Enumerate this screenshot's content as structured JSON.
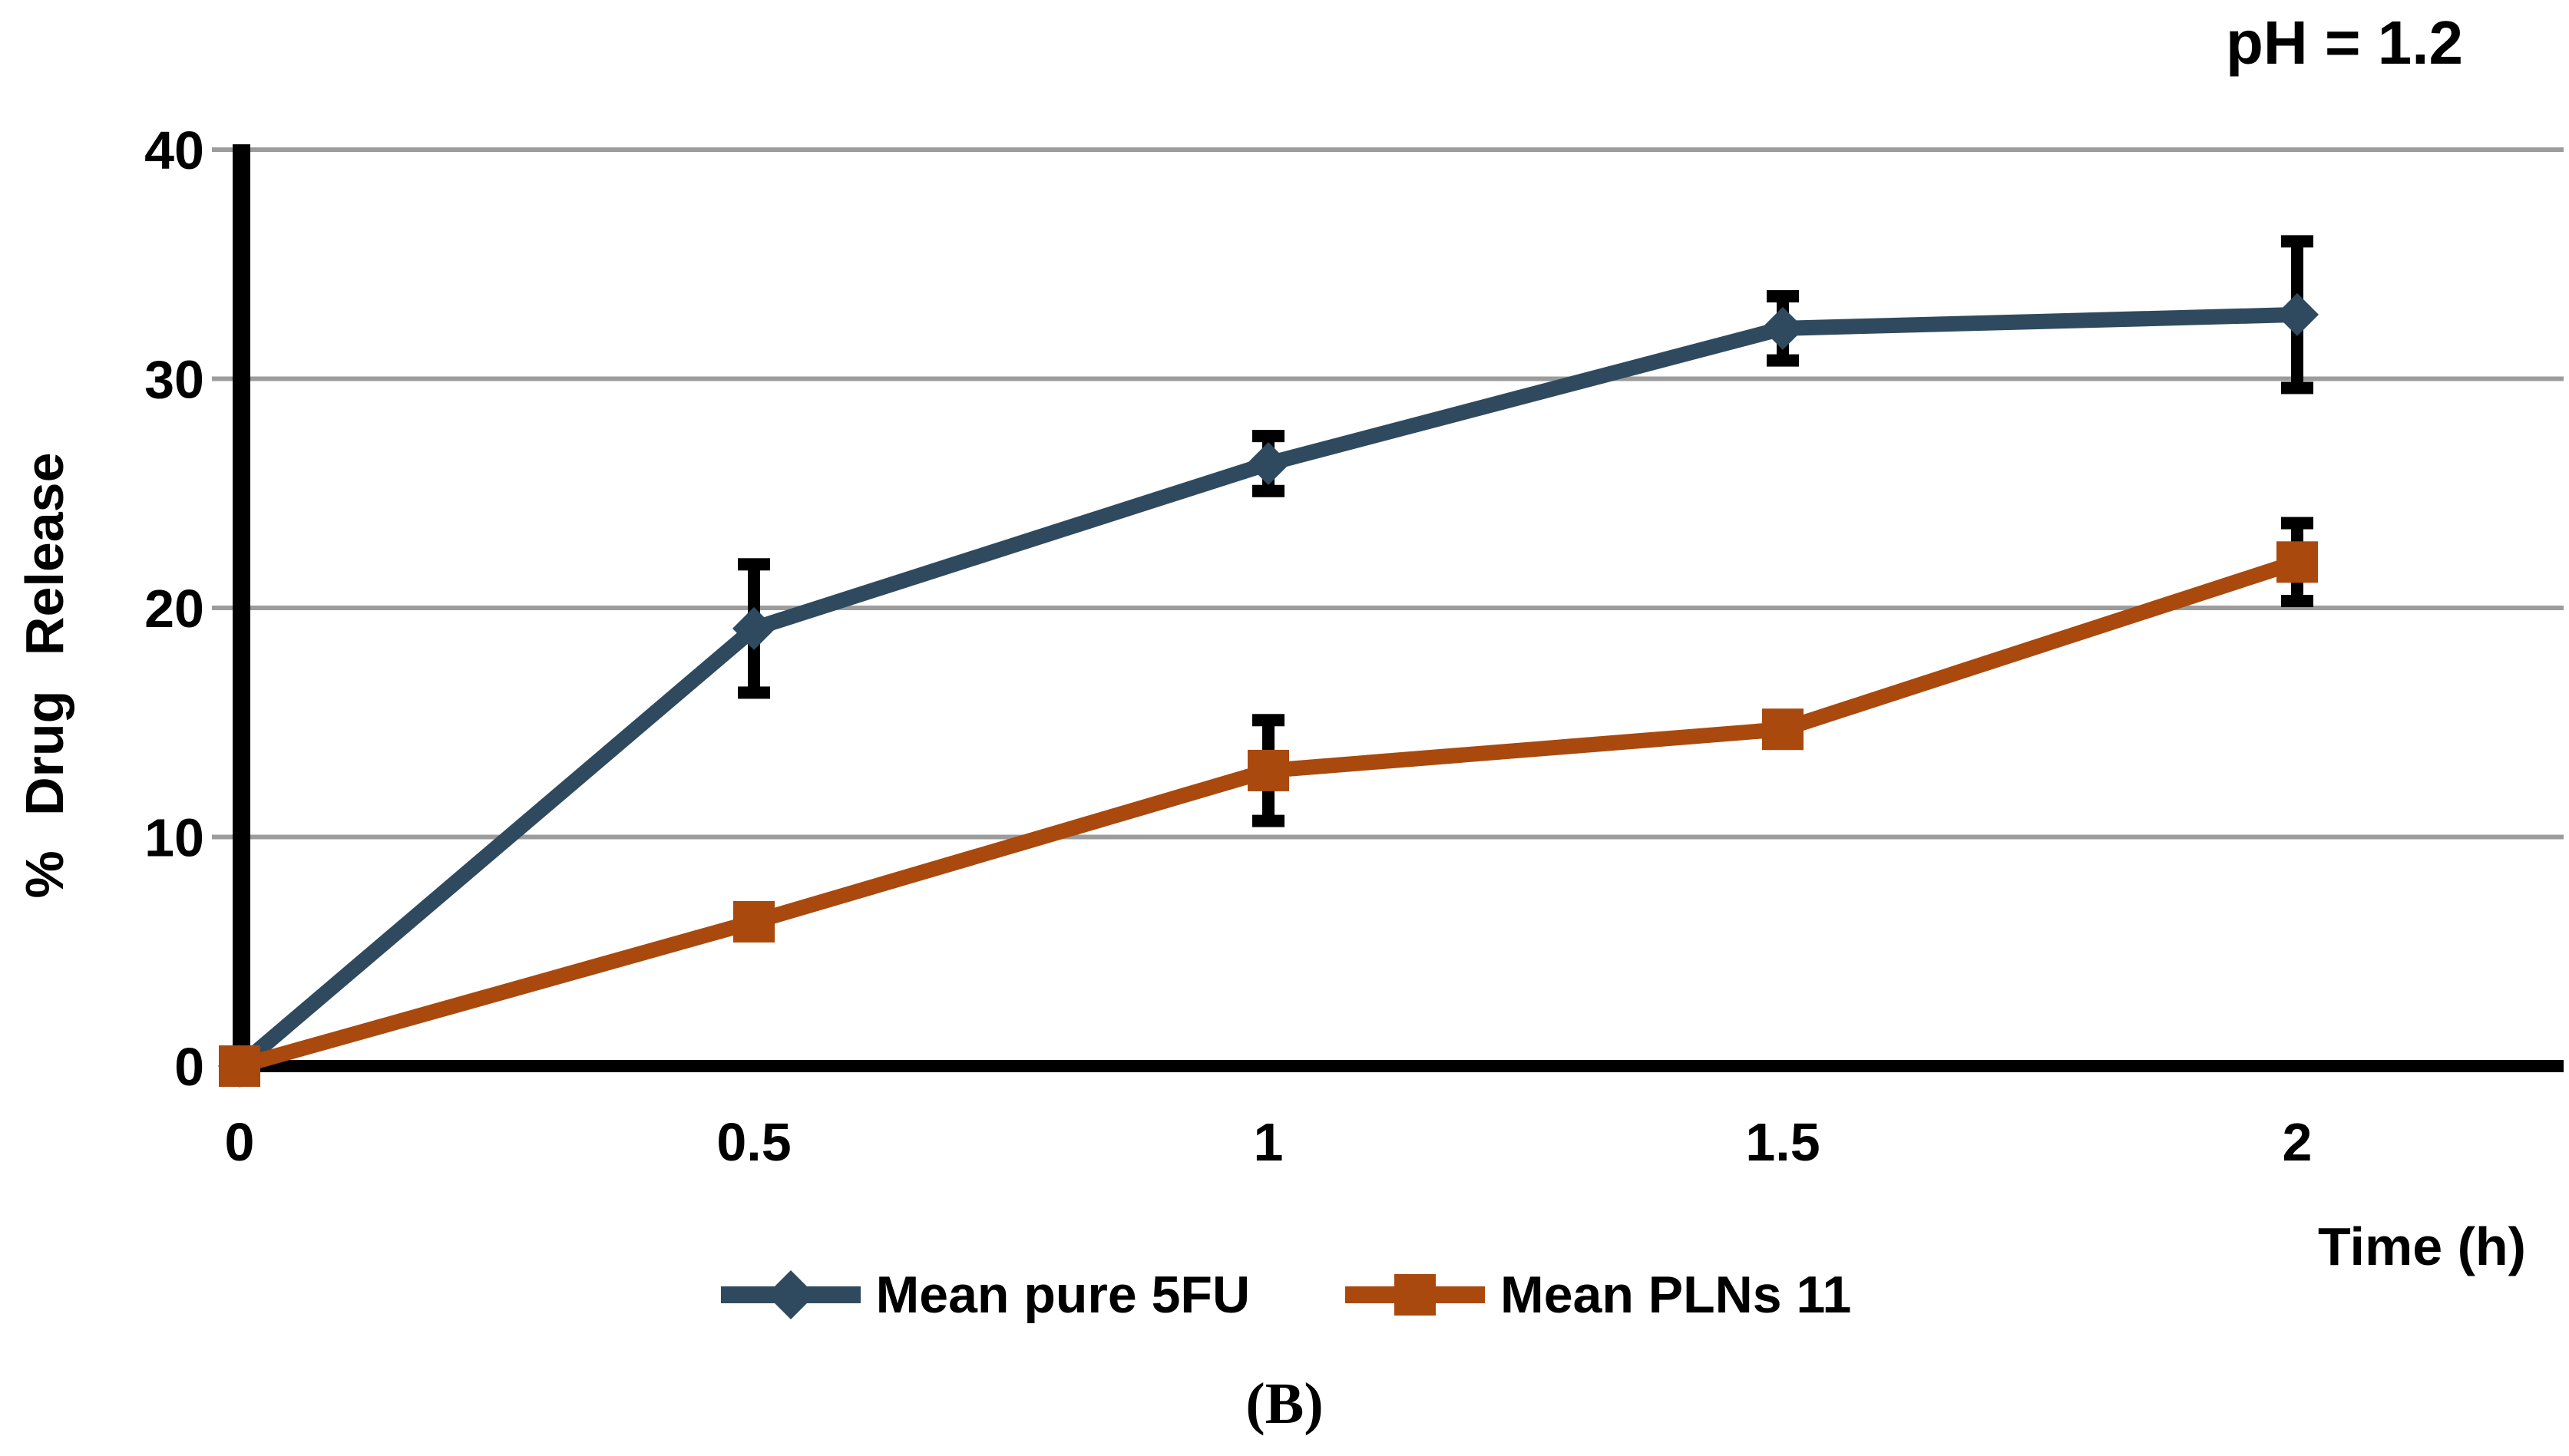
{
  "figure": {
    "caption": "(B)"
  },
  "chart_data": {
    "type": "line",
    "title": "pH = 1.2",
    "xlabel": "Time (h)",
    "ylabel": "% Drug Release",
    "x": [
      0,
      0.5,
      1,
      1.5,
      2
    ],
    "x_tick_labels": [
      "0",
      "0.5",
      "1",
      "1.5",
      "2"
    ],
    "y_ticks": [
      0,
      10,
      20,
      30,
      40
    ],
    "y_tick_labels": [
      "0",
      "10",
      "20",
      "30",
      "40"
    ],
    "xlim": [
      0,
      2.26
    ],
    "ylim": [
      0,
      40
    ],
    "grid": "horizontal-gray",
    "legend_position": "bottom-center",
    "series": [
      {
        "name": "Mean pure 5FU",
        "color": "#2F4A5E",
        "marker": "diamond",
        "values": [
          0,
          19.1,
          26.3,
          32.2,
          32.8
        ],
        "error_bars": [
          null,
          2.8,
          1.2,
          1.4,
          3.2
        ]
      },
      {
        "name": "Mean PLNs 11",
        "color": "#A9490D",
        "marker": "square",
        "values": [
          0,
          6.3,
          12.9,
          14.7,
          22.0
        ],
        "error_bars": [
          null,
          null,
          2.2,
          null,
          1.7
        ]
      }
    ],
    "colors": {
      "gridline": "#9C9C9C",
      "axis": "#000000",
      "error_bar": "#000000",
      "text": "#000000"
    }
  }
}
